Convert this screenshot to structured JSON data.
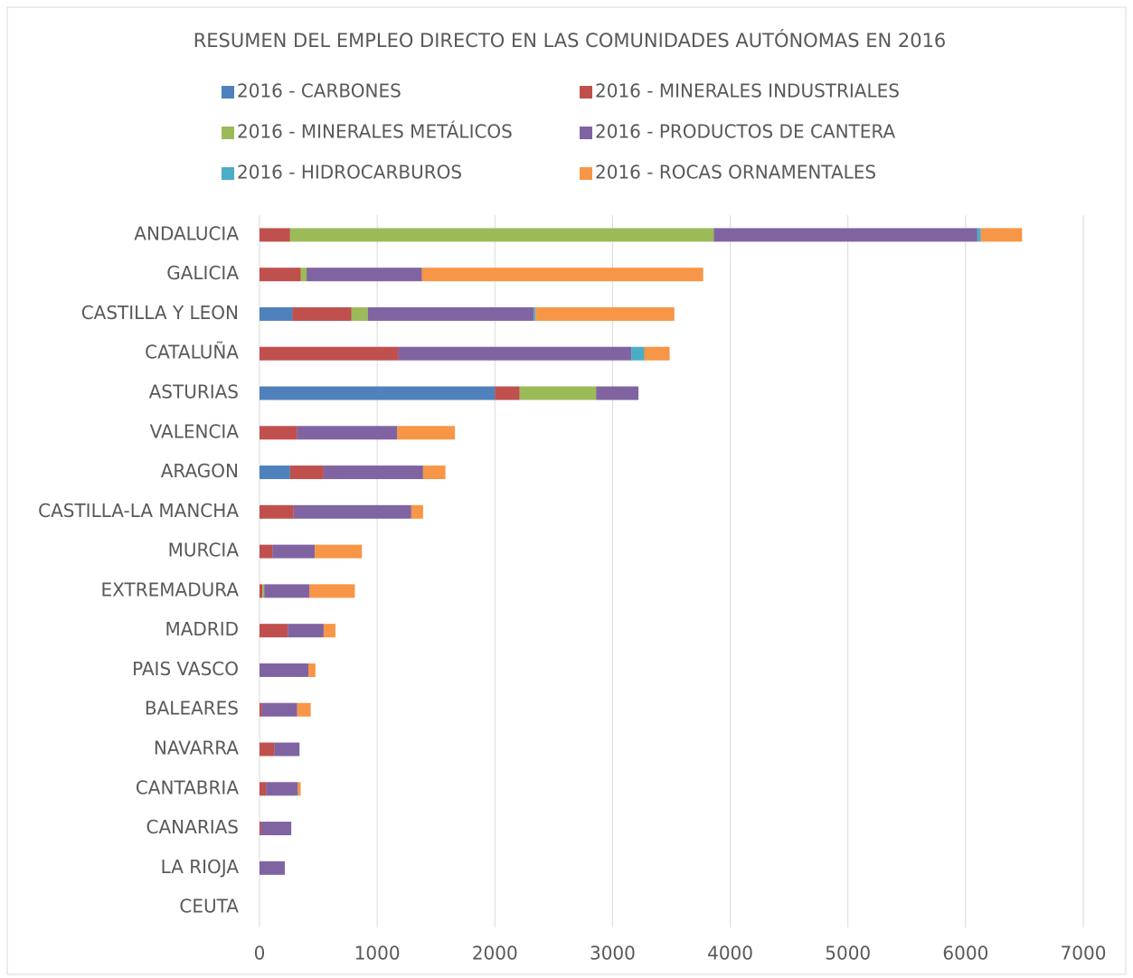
{
  "chart_data": {
    "type": "stacked-bar-horizontal",
    "title": "RESUMEN DEL EMPLEO DIRECTO EN LAS COMUNIDADES  AUTÓNOMAS EN 2016",
    "categories": [
      "ANDALUCIA",
      "GALICIA",
      "CASTILLA Y LEON",
      "CATALUÑA",
      "ASTURIAS",
      "VALENCIA",
      "ARAGON",
      "CASTILLA-LA MANCHA",
      "MURCIA",
      "EXTREMADURA",
      "MADRID",
      "PAIS VASCO",
      "BALEARES",
      "NAVARRA",
      "CANTABRIA",
      "CANARIAS",
      "LA RIOJA",
      "CEUTA"
    ],
    "series": [
      {
        "name": "2016 - CARBONES",
        "color": "#4f81bd",
        "values": [
          0,
          0,
          280,
          0,
          2000,
          0,
          260,
          0,
          0,
          0,
          0,
          0,
          0,
          0,
          0,
          0,
          0,
          0
        ]
      },
      {
        "name": "2016 - MINERALES INDUSTRIALES",
        "color": "#c0504d",
        "values": [
          260,
          350,
          500,
          1180,
          210,
          320,
          285,
          290,
          110,
          25,
          240,
          0,
          20,
          125,
          55,
          15,
          0,
          0
        ]
      },
      {
        "name": "2016 - MINERALES METÁLICOS",
        "color": "#9bbb59",
        "values": [
          3600,
          50,
          140,
          0,
          650,
          0,
          0,
          0,
          0,
          15,
          0,
          0,
          0,
          0,
          0,
          0,
          0,
          0
        ]
      },
      {
        "name": "2016 - PRODUCTOS DE CANTERA",
        "color": "#8064a2",
        "values": [
          2240,
          980,
          1410,
          1980,
          360,
          850,
          845,
          1000,
          360,
          385,
          305,
          415,
          300,
          215,
          270,
          255,
          215,
          0
        ]
      },
      {
        "name": "2016 - HIDROCARBUROS",
        "color": "#4bacc6",
        "values": [
          30,
          0,
          15,
          110,
          0,
          0,
          0,
          0,
          0,
          0,
          0,
          0,
          0,
          0,
          0,
          0,
          0,
          0
        ]
      },
      {
        "name": "2016 - ROCAS ORNAMENTALES",
        "color": "#f79646",
        "values": [
          350,
          2390,
          1180,
          215,
          0,
          490,
          190,
          100,
          400,
          385,
          100,
          60,
          115,
          0,
          25,
          0,
          0,
          0
        ]
      }
    ],
    "xlim": [
      0,
      7000
    ],
    "xticks": [
      0,
      1000,
      2000,
      3000,
      4000,
      5000,
      6000,
      7000
    ],
    "grid": true,
    "legend": "top"
  }
}
